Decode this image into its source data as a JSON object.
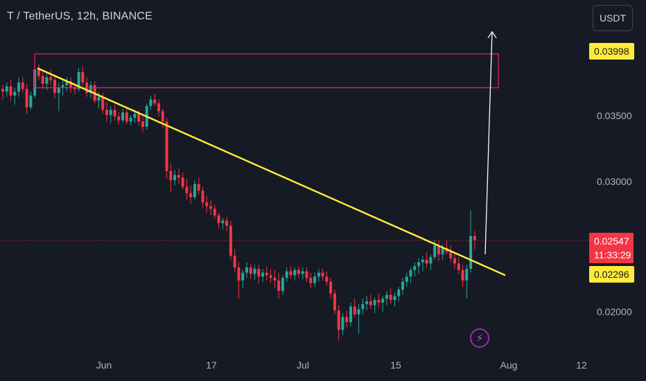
{
  "header": {
    "title": "T / TetherUS, 12h, BINANCE",
    "currency": "USDT"
  },
  "colors": {
    "up": "#26a69a",
    "down": "#f23645",
    "trendline": "#ffeb3b",
    "box": "#e91e63",
    "arrow": "#ffffff",
    "background": "#161a25"
  },
  "price_badges": {
    "target": "0.03998",
    "current": "0.02547",
    "countdown": "11:33:29",
    "trendline": "0.02296"
  },
  "icons": {
    "flash": "flash-icon"
  },
  "chart_data": {
    "type": "candlestick",
    "y_ticks": [
      "0.03500",
      "0.03000",
      "0.02000"
    ],
    "x_ticks": [
      "Jun",
      "17",
      "Jul",
      "15",
      "Aug",
      "12"
    ],
    "ylim": [
      0.0176,
      0.0438
    ],
    "annotations": {
      "trendline": [
        [
          0.0387,
          0.0228
        ]
      ],
      "target_box": [
        0.0398,
        0.0372
      ],
      "current_price": 0.02547,
      "arrow_to": 0.0415
    },
    "ohlc": [
      [
        0.0371,
        0.0374,
        0.0363,
        0.0369
      ],
      [
        0.0369,
        0.0376,
        0.0365,
        0.0373
      ],
      [
        0.0373,
        0.0378,
        0.0362,
        0.0366
      ],
      [
        0.0366,
        0.0372,
        0.0359,
        0.0369
      ],
      [
        0.0369,
        0.038,
        0.0365,
        0.0376
      ],
      [
        0.0376,
        0.038,
        0.0368,
        0.0371
      ],
      [
        0.0371,
        0.0375,
        0.0352,
        0.0357
      ],
      [
        0.0357,
        0.0369,
        0.0355,
        0.0366
      ],
      [
        0.0366,
        0.0388,
        0.0364,
        0.0386
      ],
      [
        0.0386,
        0.039,
        0.0378,
        0.0381
      ],
      [
        0.0381,
        0.0384,
        0.0371,
        0.0375
      ],
      [
        0.0375,
        0.0383,
        0.037,
        0.038
      ],
      [
        0.038,
        0.0386,
        0.0374,
        0.0378
      ],
      [
        0.0378,
        0.0381,
        0.0364,
        0.0368
      ],
      [
        0.0368,
        0.0376,
        0.0354,
        0.0372
      ],
      [
        0.0372,
        0.0378,
        0.0366,
        0.0374
      ],
      [
        0.0374,
        0.038,
        0.0369,
        0.0377
      ],
      [
        0.0377,
        0.038,
        0.0368,
        0.0372
      ],
      [
        0.0372,
        0.0376,
        0.0367,
        0.0371
      ],
      [
        0.0371,
        0.0387,
        0.0369,
        0.0384
      ],
      [
        0.0384,
        0.0388,
        0.0373,
        0.0376
      ],
      [
        0.0376,
        0.038,
        0.0365,
        0.0368
      ],
      [
        0.0368,
        0.0377,
        0.0364,
        0.0374
      ],
      [
        0.0374,
        0.0377,
        0.036,
        0.0362
      ],
      [
        0.0362,
        0.0369,
        0.0356,
        0.0365
      ],
      [
        0.0365,
        0.0368,
        0.0352,
        0.0355
      ],
      [
        0.0355,
        0.0361,
        0.0346,
        0.0351
      ],
      [
        0.0351,
        0.0358,
        0.0345,
        0.0355
      ],
      [
        0.0355,
        0.0359,
        0.0347,
        0.035
      ],
      [
        0.035,
        0.0353,
        0.0344,
        0.0347
      ],
      [
        0.0347,
        0.0356,
        0.0345,
        0.0353
      ],
      [
        0.0353,
        0.0357,
        0.0344,
        0.0346
      ],
      [
        0.0346,
        0.0351,
        0.0343,
        0.0349
      ],
      [
        0.0349,
        0.0355,
        0.0345,
        0.0352
      ],
      [
        0.0352,
        0.0355,
        0.0343,
        0.0346
      ],
      [
        0.0346,
        0.035,
        0.0338,
        0.0342
      ],
      [
        0.0342,
        0.036,
        0.034,
        0.0358
      ],
      [
        0.0358,
        0.0366,
        0.0355,
        0.0363
      ],
      [
        0.0363,
        0.0367,
        0.0358,
        0.036
      ],
      [
        0.036,
        0.0363,
        0.035,
        0.0354
      ],
      [
        0.0354,
        0.0356,
        0.0341,
        0.0346
      ],
      [
        0.0346,
        0.0349,
        0.0302,
        0.0308
      ],
      [
        0.0308,
        0.0314,
        0.0292,
        0.0301
      ],
      [
        0.0301,
        0.0309,
        0.0297,
        0.0305
      ],
      [
        0.0305,
        0.031,
        0.0298,
        0.0303
      ],
      [
        0.0303,
        0.0307,
        0.0294,
        0.0296
      ],
      [
        0.0296,
        0.0302,
        0.0286,
        0.0291
      ],
      [
        0.0291,
        0.0297,
        0.0283,
        0.0288
      ],
      [
        0.0288,
        0.0301,
        0.0286,
        0.0298
      ],
      [
        0.0298,
        0.0303,
        0.029,
        0.0293
      ],
      [
        0.0293,
        0.0296,
        0.028,
        0.0284
      ],
      [
        0.0284,
        0.0289,
        0.0276,
        0.0281
      ],
      [
        0.0281,
        0.0286,
        0.0274,
        0.0279
      ],
      [
        0.0279,
        0.0282,
        0.0271,
        0.0274
      ],
      [
        0.0274,
        0.0276,
        0.0264,
        0.0268
      ],
      [
        0.0268,
        0.0272,
        0.0263,
        0.027
      ],
      [
        0.027,
        0.0273,
        0.0262,
        0.0266
      ],
      [
        0.0266,
        0.027,
        0.024,
        0.0243
      ],
      [
        0.0243,
        0.0248,
        0.023,
        0.0234
      ],
      [
        0.0234,
        0.0238,
        0.021,
        0.0224
      ],
      [
        0.0224,
        0.0232,
        0.0218,
        0.023
      ],
      [
        0.023,
        0.0238,
        0.0226,
        0.0234
      ],
      [
        0.0234,
        0.0237,
        0.0225,
        0.0229
      ],
      [
        0.0229,
        0.0236,
        0.0224,
        0.0233
      ],
      [
        0.0233,
        0.0236,
        0.0222,
        0.0227
      ],
      [
        0.0227,
        0.0233,
        0.0223,
        0.023
      ],
      [
        0.023,
        0.0235,
        0.0224,
        0.0228
      ],
      [
        0.0228,
        0.0233,
        0.0222,
        0.0226
      ],
      [
        0.0226,
        0.0232,
        0.0218,
        0.0224
      ],
      [
        0.0224,
        0.023,
        0.021,
        0.0216
      ],
      [
        0.0216,
        0.0228,
        0.0213,
        0.0226
      ],
      [
        0.0226,
        0.0234,
        0.0223,
        0.0231
      ],
      [
        0.0231,
        0.0235,
        0.0225,
        0.0228
      ],
      [
        0.0228,
        0.0234,
        0.0224,
        0.0232
      ],
      [
        0.0232,
        0.0235,
        0.0226,
        0.0229
      ],
      [
        0.0229,
        0.0234,
        0.0225,
        0.0231
      ],
      [
        0.0231,
        0.0234,
        0.0223,
        0.0226
      ],
      [
        0.0226,
        0.023,
        0.0218,
        0.0222
      ],
      [
        0.0222,
        0.023,
        0.0219,
        0.0227
      ],
      [
        0.0227,
        0.0233,
        0.0223,
        0.023
      ],
      [
        0.023,
        0.0233,
        0.0224,
        0.0227
      ],
      [
        0.0227,
        0.0231,
        0.022,
        0.0223
      ],
      [
        0.0223,
        0.0226,
        0.021,
        0.0214
      ],
      [
        0.0214,
        0.0217,
        0.0198,
        0.0201
      ],
      [
        0.0201,
        0.0205,
        0.0178,
        0.0186
      ],
      [
        0.0186,
        0.0199,
        0.0182,
        0.0196
      ],
      [
        0.0196,
        0.0201,
        0.0188,
        0.0192
      ],
      [
        0.0192,
        0.0207,
        0.0189,
        0.0204
      ],
      [
        0.0204,
        0.021,
        0.0196,
        0.0198
      ],
      [
        0.0198,
        0.0206,
        0.0183,
        0.0202
      ],
      [
        0.0202,
        0.021,
        0.0198,
        0.0206
      ],
      [
        0.0206,
        0.0212,
        0.0201,
        0.0208
      ],
      [
        0.0208,
        0.0213,
        0.0202,
        0.0205
      ],
      [
        0.0205,
        0.0211,
        0.0199,
        0.0209
      ],
      [
        0.0209,
        0.0214,
        0.0203,
        0.0207
      ],
      [
        0.0207,
        0.0212,
        0.02,
        0.021
      ],
      [
        0.021,
        0.0216,
        0.0205,
        0.0213
      ],
      [
        0.0213,
        0.0218,
        0.0206,
        0.0209
      ],
      [
        0.0209,
        0.0215,
        0.0204,
        0.0212
      ],
      [
        0.0212,
        0.0219,
        0.0208,
        0.0217
      ],
      [
        0.0217,
        0.0226,
        0.0213,
        0.0223
      ],
      [
        0.0223,
        0.023,
        0.0219,
        0.0227
      ],
      [
        0.0227,
        0.0234,
        0.0222,
        0.0232
      ],
      [
        0.0232,
        0.0238,
        0.0227,
        0.0235
      ],
      [
        0.0235,
        0.0241,
        0.0229,
        0.0238
      ],
      [
        0.0238,
        0.0243,
        0.0231,
        0.024
      ],
      [
        0.024,
        0.0246,
        0.0234,
        0.0237
      ],
      [
        0.0237,
        0.0244,
        0.0232,
        0.0242
      ],
      [
        0.0242,
        0.0255,
        0.024,
        0.0251
      ],
      [
        0.0251,
        0.0255,
        0.0239,
        0.0244
      ],
      [
        0.0244,
        0.0252,
        0.024,
        0.0249
      ],
      [
        0.0249,
        0.0255,
        0.0244,
        0.0246
      ],
      [
        0.0246,
        0.0251,
        0.0238,
        0.0241
      ],
      [
        0.0241,
        0.0246,
        0.0233,
        0.0237
      ],
      [
        0.0237,
        0.0242,
        0.0229,
        0.0232
      ],
      [
        0.0232,
        0.0236,
        0.0219,
        0.0224
      ],
      [
        0.0224,
        0.0236,
        0.021,
        0.0233
      ],
      [
        0.0233,
        0.0278,
        0.023,
        0.0258
      ],
      [
        0.0258,
        0.0262,
        0.0248,
        0.0255
      ]
    ]
  }
}
